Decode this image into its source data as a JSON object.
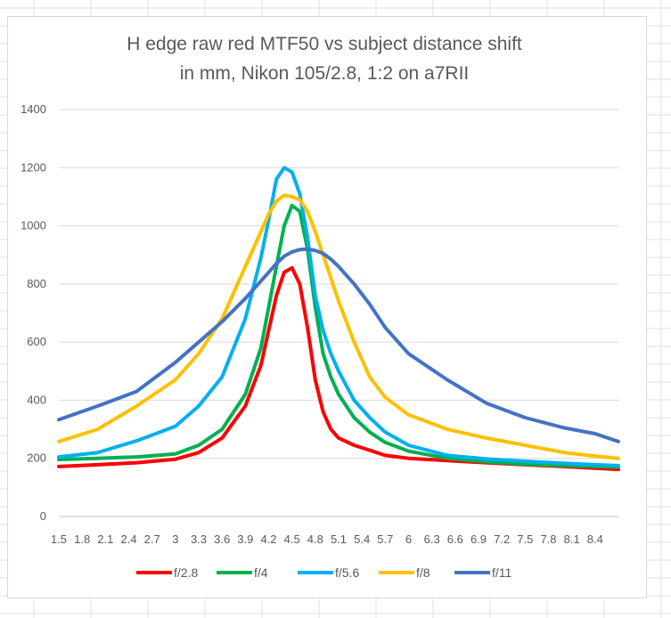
{
  "chart_data": {
    "type": "line",
    "title_lines": [
      "H edge raw  red MTF50 vs subject distance shift",
      "in mm, Nikon 105/2.8, 1:2 on a7RII"
    ],
    "xlabel": "",
    "ylabel": "",
    "ylim": [
      0,
      1400
    ],
    "yticks": [
      0,
      200,
      400,
      600,
      800,
      1000,
      1200,
      1400
    ],
    "x_tick_labels": [
      "1.5",
      "1.8",
      "2.1",
      "2.4",
      "2.7",
      "3",
      "3.3",
      "3.6",
      "3.9",
      "4.2",
      "4.5",
      "4.8",
      "5.1",
      "5.4",
      "5.7",
      "6",
      "6.3",
      "6.6",
      "6.9",
      "7.2",
      "7.5",
      "7.8",
      "8.1",
      "8.4"
    ],
    "x_tick_values": [
      1.5,
      1.8,
      2.1,
      2.4,
      2.7,
      3.0,
      3.3,
      3.6,
      3.9,
      4.2,
      4.5,
      4.8,
      5.1,
      5.4,
      5.7,
      6.0,
      6.3,
      6.6,
      6.9,
      7.2,
      7.5,
      7.8,
      8.1,
      8.4
    ],
    "xlim": [
      1.5,
      8.7
    ],
    "grid": "horizontal",
    "legend_position": "bottom",
    "x": [
      1.5,
      2.0,
      2.5,
      3.0,
      3.3,
      3.6,
      3.9,
      4.1,
      4.2,
      4.3,
      4.4,
      4.5,
      4.6,
      4.7,
      4.8,
      4.9,
      5.0,
      5.1,
      5.3,
      5.5,
      5.7,
      6.0,
      6.5,
      7.0,
      7.5,
      8.0,
      8.4,
      8.7
    ],
    "series": [
      {
        "name": "f/2.8",
        "color": "#ff0000",
        "values": [
          172,
          178,
          185,
          197,
          220,
          270,
          380,
          520,
          640,
          760,
          840,
          855,
          800,
          650,
          470,
          360,
          300,
          270,
          245,
          228,
          210,
          200,
          192,
          185,
          178,
          172,
          166,
          162
        ]
      },
      {
        "name": "f/4",
        "color": "#00b050",
        "values": [
          196,
          200,
          205,
          215,
          245,
          300,
          420,
          580,
          720,
          860,
          1000,
          1070,
          1050,
          920,
          720,
          560,
          480,
          420,
          340,
          290,
          255,
          225,
          200,
          188,
          180,
          175,
          172,
          170
        ]
      },
      {
        "name": "f/5.6",
        "color": "#00b0f0",
        "values": [
          205,
          220,
          260,
          310,
          380,
          480,
          680,
          890,
          1020,
          1160,
          1200,
          1185,
          1110,
          960,
          760,
          640,
          560,
          500,
          400,
          340,
          290,
          245,
          210,
          198,
          190,
          183,
          178,
          175
        ]
      },
      {
        "name": "f/8",
        "color": "#ffc000",
        "values": [
          258,
          300,
          380,
          470,
          560,
          680,
          860,
          980,
          1040,
          1085,
          1105,
          1100,
          1090,
          1050,
          980,
          900,
          820,
          740,
          600,
          480,
          410,
          350,
          300,
          270,
          245,
          220,
          208,
          200
        ]
      },
      {
        "name": "f/11",
        "color": "#4472c4",
        "values": [
          333,
          380,
          430,
          530,
          600,
          670,
          750,
          810,
          840,
          870,
          895,
          910,
          918,
          920,
          915,
          905,
          885,
          860,
          800,
          730,
          650,
          560,
          470,
          390,
          340,
          305,
          285,
          258
        ]
      }
    ]
  }
}
